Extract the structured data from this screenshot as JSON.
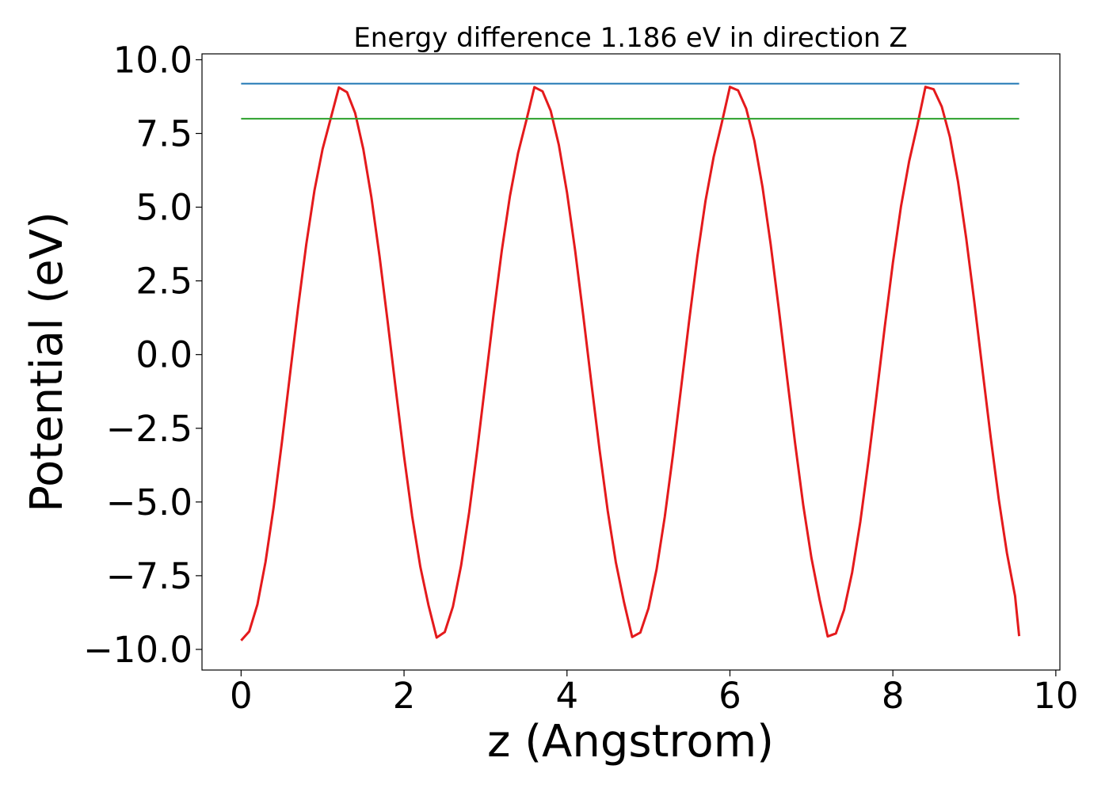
{
  "chart_data": {
    "type": "line",
    "title": "Energy difference 1.186 eV in direction Z",
    "xlabel": "z (Angstrom)",
    "ylabel": "Potential (eV)",
    "xlim": [
      -0.48,
      10.05
    ],
    "ylim": [
      -10.7,
      10.2
    ],
    "xticks": [
      0,
      2,
      4,
      6,
      8,
      10
    ],
    "xtick_labels": [
      "0",
      "2",
      "4",
      "6",
      "8",
      "10"
    ],
    "yticks": [
      10.0,
      7.5,
      5.0,
      2.5,
      0.0,
      -2.5,
      -5.0,
      -7.5,
      -10.0
    ],
    "ytick_labels": [
      "10.0",
      "7.5",
      "5.0",
      "2.5",
      "0.0",
      "−2.5",
      "−5.0",
      "−7.5",
      "−10.0"
    ],
    "grid": false,
    "series": [
      {
        "color": "#e41a1c",
        "x": [
          0.0,
          0.1,
          0.2,
          0.3,
          0.4,
          0.5,
          0.6,
          0.7,
          0.8,
          0.9,
          1.0,
          1.1,
          1.2,
          1.3,
          1.4,
          1.5,
          1.6,
          1.7,
          1.8,
          1.9,
          2.0,
          2.1,
          2.2,
          2.3,
          2.4,
          2.5,
          2.6,
          2.7,
          2.8,
          2.9,
          3.0,
          3.1,
          3.2,
          3.3,
          3.4,
          3.5,
          3.6,
          3.7,
          3.8,
          3.9,
          4.0,
          4.1,
          4.2,
          4.3,
          4.4,
          4.5,
          4.6,
          4.7,
          4.8,
          4.9,
          5.0,
          5.1,
          5.2,
          5.3,
          5.4,
          5.5,
          5.6,
          5.7,
          5.8,
          5.9,
          6.0,
          6.1,
          6.2,
          6.3,
          6.4,
          6.5,
          6.6,
          6.7,
          6.8,
          6.9,
          7.0,
          7.1,
          7.2,
          7.3,
          7.4,
          7.5,
          7.6,
          7.7,
          7.8,
          7.9,
          8.0,
          8.1,
          8.2,
          8.3,
          8.4,
          8.5,
          8.6,
          8.7,
          8.8,
          8.9,
          9.0,
          9.1,
          9.2,
          9.3,
          9.4,
          9.5,
          9.55
        ],
        "y": [
          -9.7,
          -9.39,
          -8.48,
          -7.03,
          -5.16,
          -2.99,
          -0.68,
          1.61,
          3.74,
          5.56,
          6.97,
          8.01,
          9.06,
          8.9,
          8.19,
          6.97,
          5.32,
          3.32,
          1.09,
          -1.21,
          -3.45,
          -5.49,
          -7.2,
          -8.5,
          -9.6,
          -9.41,
          -8.55,
          -7.16,
          -5.34,
          -3.2,
          -0.91,
          1.38,
          3.53,
          5.38,
          6.84,
          7.93,
          9.07,
          8.93,
          8.27,
          7.11,
          5.5,
          3.53,
          1.32,
          -0.98,
          -3.23,
          -5.3,
          -7.05,
          -8.4,
          -9.58,
          -9.43,
          -8.61,
          -7.28,
          -5.51,
          -3.41,
          -1.14,
          1.16,
          3.32,
          5.21,
          6.7,
          7.86,
          9.08,
          8.96,
          8.34,
          7.25,
          5.68,
          3.74,
          1.55,
          -0.75,
          -3.01,
          -5.11,
          -6.89,
          -8.3,
          -9.56,
          -9.46,
          -8.67,
          -7.39,
          -5.68,
          -3.61,
          -1.37,
          0.93,
          3.11,
          5.03,
          6.56,
          7.77,
          9.08,
          9.0,
          8.41,
          7.38,
          5.86,
          3.95,
          1.78,
          -0.52,
          -2.79,
          -4.91,
          -6.73,
          -8.19,
          -9.55
        ]
      },
      {
        "color": "#1f77b4",
        "x": [
          0.0,
          9.55
        ],
        "y": [
          9.19,
          9.19
        ]
      },
      {
        "color": "#2ca02c",
        "x": [
          0.0,
          9.55
        ],
        "y": [
          8.0,
          8.0
        ]
      }
    ]
  }
}
